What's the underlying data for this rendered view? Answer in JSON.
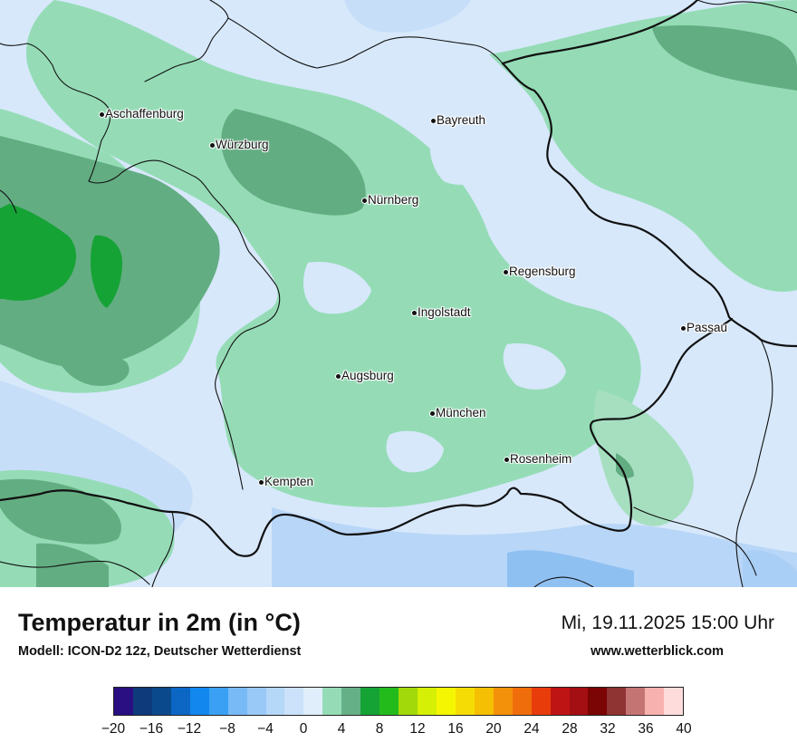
{
  "title": "Temperatur in 2m (in °C)",
  "model": "Modell: ICON-D2 12z, Deutscher Wetterdienst",
  "datetime": "Mi, 19.11.2025 15:00 Uhr",
  "website": "www.wetterblick.com",
  "palette": {
    "light_blue": "#d7e8fb",
    "mid_blue": "#b8d6f7",
    "light_green": "#95dcb6",
    "mid_green": "#63ad82",
    "dark_green": "#16a336",
    "border": "#111111"
  },
  "cities": [
    {
      "id": "aschaffenburg",
      "name": "Aschaffenburg"
    },
    {
      "id": "wuerzburg",
      "name": "Würzburg"
    },
    {
      "id": "bayreuth",
      "name": "Bayreuth"
    },
    {
      "id": "nuernberg",
      "name": "Nürnberg"
    },
    {
      "id": "regensburg",
      "name": "Regensburg"
    },
    {
      "id": "ingolstadt",
      "name": "Ingolstadt"
    },
    {
      "id": "passau",
      "name": "Passau"
    },
    {
      "id": "augsburg",
      "name": "Augsburg"
    },
    {
      "id": "muenchen",
      "name": "München"
    },
    {
      "id": "rosenheim",
      "name": "Rosenheim"
    },
    {
      "id": "kempten",
      "name": "Kempten"
    }
  ],
  "legend": {
    "colors": [
      "#2a0f82",
      "#0e3a7c",
      "#0a4a8c",
      "#0b66c4",
      "#1287ee",
      "#3aa0f4",
      "#78baf6",
      "#99c9f7",
      "#b5d8f8",
      "#cbe2fa",
      "#e0eefc",
      "#95dcb6",
      "#66b088",
      "#16a336",
      "#23bb1c",
      "#a2d90a",
      "#d5ef05",
      "#f5f702",
      "#f5dc05",
      "#f5bf04",
      "#f4910a",
      "#ef6e0b",
      "#e83c0b",
      "#be1414",
      "#a40f13",
      "#7b0404",
      "#8f3333",
      "#c57474",
      "#f7b2b0",
      "#ffdcdc"
    ],
    "ticks": [
      "−20",
      "−16",
      "−12",
      "−8",
      "−4",
      "0",
      "4",
      "8",
      "12",
      "16",
      "20",
      "24",
      "28",
      "32",
      "36",
      "40"
    ]
  }
}
